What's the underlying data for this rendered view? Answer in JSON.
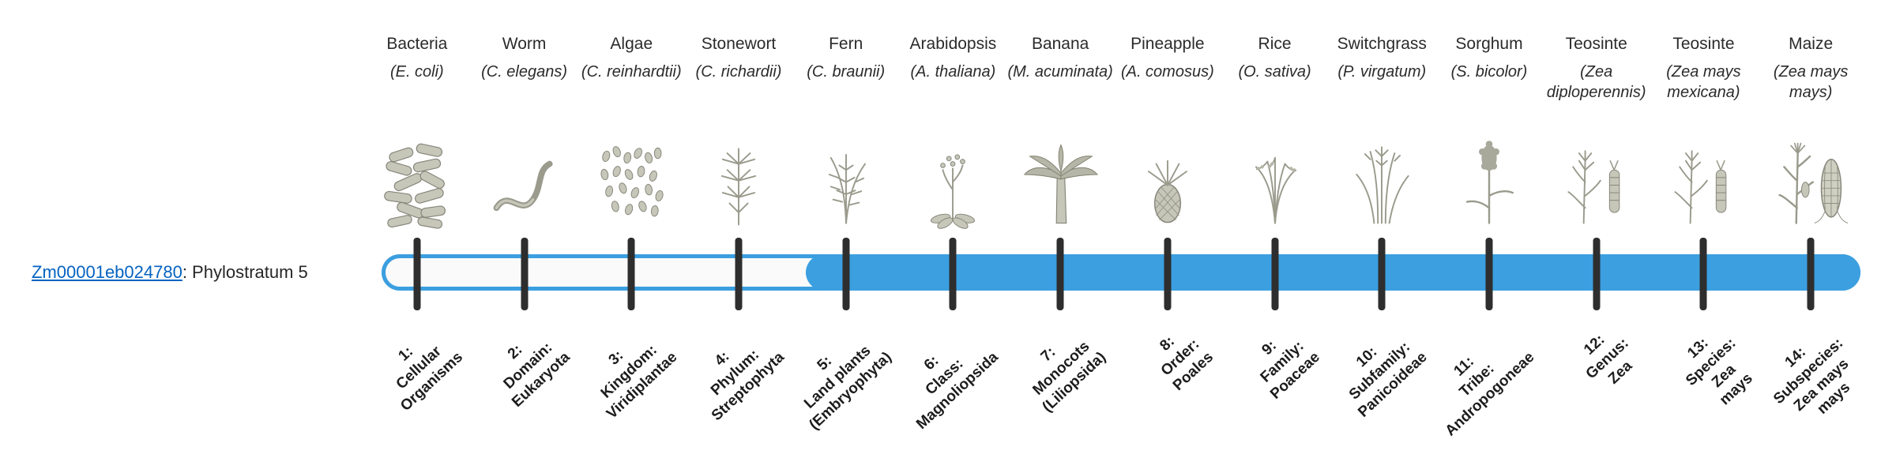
{
  "gene": {
    "id": "Zm00001eb024780",
    "suffix": ": Phylostratum 5",
    "phylostratum": 5
  },
  "bar": {
    "fill_start_percent": 28.7,
    "total_strata": 14
  },
  "colors": {
    "bar_blue": "#3b9fe0",
    "tick": "#2e2e2e",
    "link": "#0563c1",
    "text": "#262626",
    "illustration": "#9a9a8d"
  },
  "taxa": [
    {
      "name": "Bacteria",
      "sci": "(E. coli)",
      "icon": "bacteria",
      "stratum_lines": [
        "1:",
        "Cellular",
        "Organisms"
      ]
    },
    {
      "name": "Worm",
      "sci": "(C. elegans)",
      "icon": "worm",
      "stratum_lines": [
        "2:",
        "Domain:",
        "Eukaryota"
      ]
    },
    {
      "name": "Algae",
      "sci": "(C. reinhardtii)",
      "icon": "algae",
      "stratum_lines": [
        "3:",
        "Kingdom:",
        "Viridiplantae"
      ]
    },
    {
      "name": "Stonewort",
      "sci": "(C. richardii)",
      "icon": "stonewort",
      "stratum_lines": [
        "4:",
        "Phylum:",
        "Streptophyta"
      ]
    },
    {
      "name": "Fern",
      "sci": "(C. braunii)",
      "icon": "fern",
      "stratum_lines": [
        "5:",
        "Land plants",
        "(Embryophyta)"
      ]
    },
    {
      "name": "Arabidopsis",
      "sci": "(A. thaliana)",
      "icon": "arabidopsis",
      "stratum_lines": [
        "6:",
        "Class:",
        "Magnoliopsida"
      ]
    },
    {
      "name": "Banana",
      "sci": "(M. acuminata)",
      "icon": "banana",
      "stratum_lines": [
        "7:",
        "Monocots",
        "(Liliopsida)"
      ]
    },
    {
      "name": "Pineapple",
      "sci": "(A. comosus)",
      "icon": "pineapple",
      "stratum_lines": [
        "8:",
        "Order:",
        "Poales"
      ]
    },
    {
      "name": "Rice",
      "sci": "(O. sativa)",
      "icon": "rice",
      "stratum_lines": [
        "9:",
        "Family:",
        "Poaceae"
      ]
    },
    {
      "name": "Switchgrass",
      "sci": "(P. virgatum)",
      "icon": "switchgrass",
      "stratum_lines": [
        "10:",
        "Subfamily:",
        "Panicoideae"
      ]
    },
    {
      "name": "Sorghum",
      "sci": "(S. bicolor)",
      "icon": "sorghum",
      "stratum_lines": [
        "11:",
        "Tribe:",
        "Andropogoneae"
      ]
    },
    {
      "name": "Teosinte",
      "sci": "(Zea diploperennis)",
      "icon": "teosinte",
      "stratum_lines": [
        "12:",
        "Genus:",
        "Zea"
      ]
    },
    {
      "name": "Teosinte",
      "sci": "(Zea mays mexicana)",
      "icon": "teosinte",
      "stratum_lines": [
        "13:",
        "Species:",
        "Zea",
        "mays"
      ]
    },
    {
      "name": "Maize",
      "sci": "(Zea mays mays)",
      "icon": "maize",
      "stratum_lines": [
        "14:",
        "Subspecies:",
        "Zea mays",
        "mays"
      ]
    }
  ]
}
